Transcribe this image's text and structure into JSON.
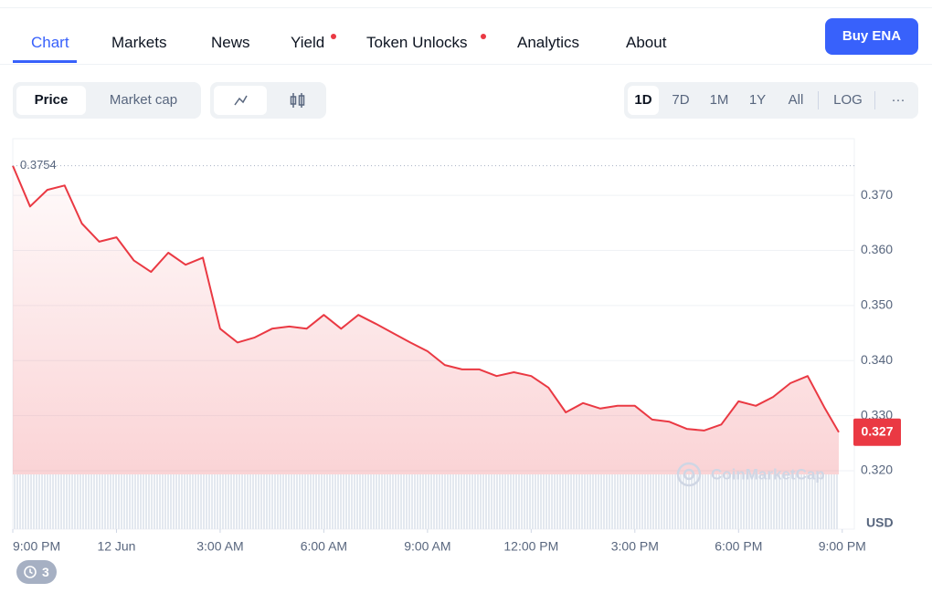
{
  "tabs": [
    "Chart",
    "Markets",
    "News",
    "Yield",
    "Token Unlocks",
    "Analytics",
    "About"
  ],
  "buy_button": "Buy ENA",
  "toggles": [
    "Price",
    "Market cap"
  ],
  "ranges": [
    "1D",
    "7D",
    "1M",
    "1Y",
    "All",
    "LOG"
  ],
  "more": "···",
  "watermark": "CoinMarketCap",
  "history_count": "3",
  "chart_data": {
    "type": "line",
    "unit_label": "USD",
    "color": "#ea3943",
    "x": [
      0,
      0.5,
      1,
      1.5,
      2,
      2.5,
      3,
      3.5,
      4,
      4.5,
      5,
      5.5,
      6,
      6.5,
      7,
      7.5,
      8,
      8.5,
      9,
      9.5,
      10,
      10.5,
      11,
      11.5,
      12,
      12.5,
      13,
      13.5,
      14,
      14.5,
      15,
      15.5,
      16,
      16.5,
      17,
      17.5,
      18,
      18.5,
      19,
      19.5,
      20,
      20.5,
      21,
      21.5,
      22,
      22.5,
      23,
      23.5,
      23.9
    ],
    "values": [
      0.3754,
      0.368,
      0.371,
      0.3718,
      0.3649,
      0.3616,
      0.3624,
      0.3582,
      0.3561,
      0.3596,
      0.3574,
      0.3587,
      0.3458,
      0.3433,
      0.3442,
      0.3458,
      0.3462,
      0.3458,
      0.3483,
      0.3458,
      0.3483,
      0.3467,
      0.345,
      0.3433,
      0.3417,
      0.3392,
      0.3384,
      0.3384,
      0.3372,
      0.3379,
      0.3372,
      0.3351,
      0.3306,
      0.3323,
      0.3313,
      0.3318,
      0.3318,
      0.3293,
      0.3289,
      0.3276,
      0.3273,
      0.3284,
      0.3326,
      0.3318,
      0.3334,
      0.3359,
      0.3372,
      0.3313,
      0.327
    ],
    "xlim": [
      0,
      24.35
    ],
    "ylim": [
      0.3094,
      0.3803
    ],
    "xticks": [
      {
        "value": 0,
        "label": "9:00 PM"
      },
      {
        "value": 3,
        "label": "12 Jun"
      },
      {
        "value": 6,
        "label": "3:00 AM"
      },
      {
        "value": 9,
        "label": "6:00 AM"
      },
      {
        "value": 12,
        "label": "9:00 AM"
      },
      {
        "value": 15,
        "label": "12:00 PM"
      },
      {
        "value": 18,
        "label": "3:00 PM"
      },
      {
        "value": 21,
        "label": "6:00 PM"
      },
      {
        "value": 24,
        "label": "9:00 PM"
      }
    ],
    "yticks": [
      {
        "value": 0.32,
        "label": "0.320"
      },
      {
        "value": 0.33,
        "label": "0.330"
      },
      {
        "value": 0.34,
        "label": "0.340"
      },
      {
        "value": 0.35,
        "label": "0.350"
      },
      {
        "value": 0.36,
        "label": "0.360"
      },
      {
        "value": 0.37,
        "label": "0.370"
      }
    ],
    "grid": true
  }
}
